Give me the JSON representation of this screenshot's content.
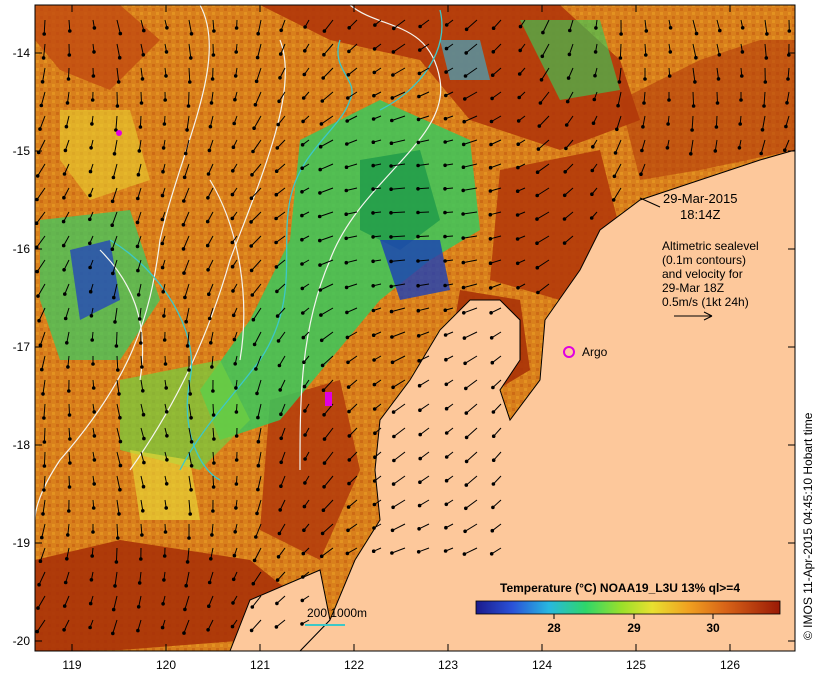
{
  "map": {
    "x_ticks": [
      "119",
      "120",
      "121",
      "122",
      "123",
      "124",
      "125",
      "126"
    ],
    "y_ticks": [
      "-14",
      "-15",
      "-16",
      "-17",
      "-18",
      "-19",
      "-20"
    ],
    "date_line1": "29-Mar-2015",
    "date_line2": "18:14Z",
    "legend_lines": [
      "Altimetric sealevel",
      "(0.1m contours)",
      "and velocity for",
      "29-Mar 18Z",
      "0.5m/s (1kt 24h)"
    ],
    "argo_label": "Argo",
    "isobath_label": "200  1000m",
    "colorbar_title": "Temperature (°C) NOAA19_L3U 13% ql>=4",
    "colorbar_ticks": [
      "28",
      "29",
      "30"
    ],
    "credit": "© IMOS 11-Apr-2015 04:45:10 Hobart time"
  },
  "colors": {
    "land": "#fdc89b",
    "warm": "#b23a0a",
    "mid": "#e0921e",
    "cool": "#36c85a",
    "cold": "#1a2fb0",
    "argo": "#e000e0",
    "isobath": "#3cc8c8"
  }
}
